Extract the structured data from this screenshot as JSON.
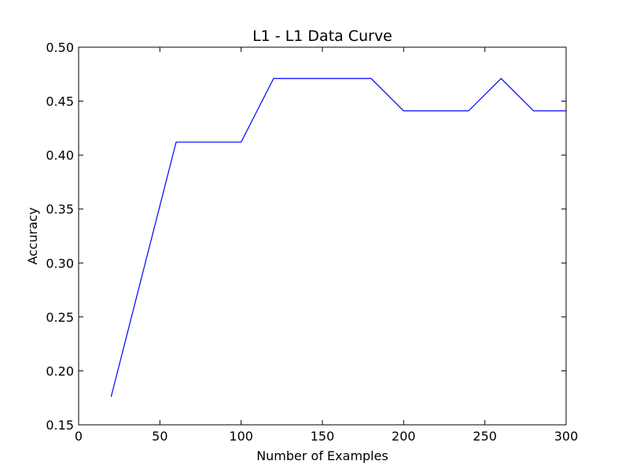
{
  "chart_data": {
    "type": "line",
    "title": "L1 - L1 Data Curve",
    "xlabel": "Number of Examples",
    "ylabel": "Accuracy",
    "xlim": [
      0,
      300
    ],
    "ylim": [
      0.15,
      0.5
    ],
    "xticks": [
      0,
      50,
      100,
      150,
      200,
      250,
      300
    ],
    "xtick_labels": [
      "0",
      "50",
      "100",
      "150",
      "200",
      "250",
      "300"
    ],
    "yticks": [
      0.15,
      0.2,
      0.25,
      0.3,
      0.35,
      0.4,
      0.45,
      0.5
    ],
    "ytick_labels": [
      "0.15",
      "0.20",
      "0.25",
      "0.30",
      "0.35",
      "0.40",
      "0.45",
      "0.50"
    ],
    "grid": false,
    "legend": "none",
    "series": [
      {
        "color": "#0000ff",
        "x": [
          20,
          60,
          80,
          100,
          120,
          140,
          160,
          180,
          200,
          220,
          240,
          260,
          280,
          300
        ],
        "y": [
          0.176,
          0.412,
          0.412,
          0.412,
          0.471,
          0.471,
          0.471,
          0.471,
          0.441,
          0.441,
          0.441,
          0.471,
          0.441,
          0.441
        ]
      }
    ]
  }
}
